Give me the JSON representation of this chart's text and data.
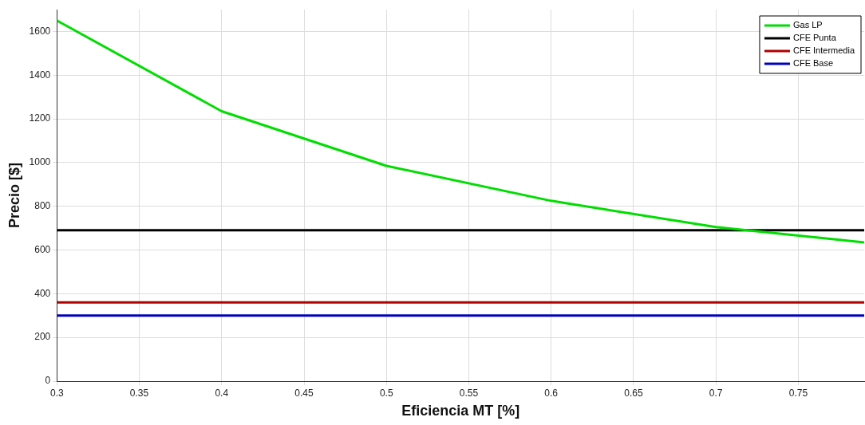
{
  "chart_data": {
    "type": "line",
    "xlabel": "Eficiencia MT [%]",
    "ylabel": "Precio [$]",
    "xlim": [
      0.3,
      0.79
    ],
    "xticks": [
      0.3,
      0.35,
      0.4,
      0.45,
      0.5,
      0.55,
      0.6,
      0.65,
      0.7,
      0.75
    ],
    "ylim": [
      0,
      1700
    ],
    "yticks": [
      0,
      200,
      400,
      600,
      800,
      1000,
      1200,
      1400,
      1600
    ],
    "grid": true,
    "legend": "top right",
    "marker": "none",
    "line_style": "solid",
    "series": [
      {
        "name": "Gas LP",
        "color": "#00dd00",
        "x": [
          0.3,
          0.4,
          0.5,
          0.6,
          0.7,
          0.79
        ],
        "values": [
          1650,
          1235,
          985,
          825,
          705,
          635
        ]
      },
      {
        "name": "CFE Punta",
        "color": "#000000",
        "x": [
          0.3,
          0.79
        ],
        "values": [
          690,
          690
        ]
      },
      {
        "name": "CFE Intermedia",
        "color": "#b00000",
        "x": [
          0.3,
          0.79
        ],
        "values": [
          360,
          360
        ]
      },
      {
        "name": "CFE Base",
        "color": "#0000c0",
        "x": [
          0.3,
          0.79
        ],
        "values": [
          300,
          300
        ]
      }
    ]
  }
}
